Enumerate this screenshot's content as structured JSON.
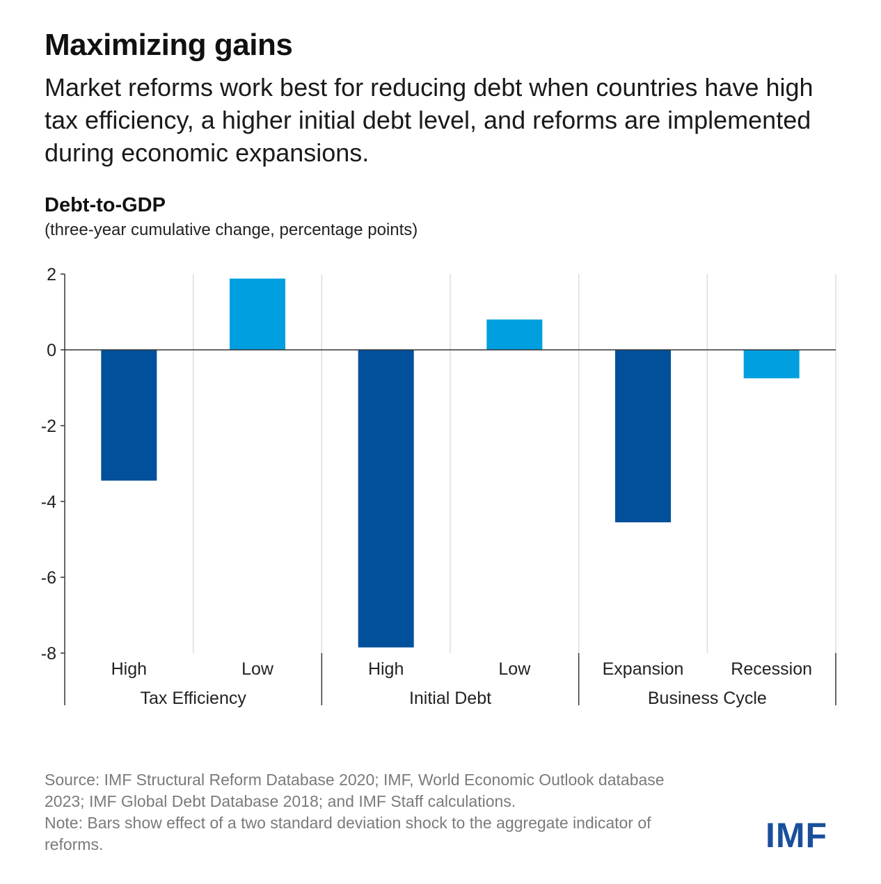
{
  "title": "Maximizing gains",
  "subtitle": "Market reforms work best for reducing debt when countries have high tax efficiency, a higher initial debt level, and reforms are implemented during economic expansions.",
  "y_axis_title": "Debt-to-GDP",
  "y_axis_subtitle": "(three-year cumulative change, percentage points)",
  "source": "Source: IMF Structural Reform Database 2020; IMF, World Economic Outlook database 2023; IMF Global Debt Database 2018; and IMF Staff calculations.",
  "note": "Note: Bars show effect of a two standard deviation shock to the aggregate indicator of reforms.",
  "logo": "IMF",
  "colors": {
    "dark": "#00509b",
    "light": "#009fdf",
    "grid": "#dddddd",
    "axis": "#333333"
  },
  "chart_data": {
    "type": "bar",
    "groups": [
      {
        "name": "Tax Efficiency",
        "categories": [
          "High",
          "Low"
        ],
        "values": [
          -3.45,
          1.88
        ]
      },
      {
        "name": "Initial Debt",
        "categories": [
          "High",
          "Low"
        ],
        "values": [
          -7.85,
          0.8
        ]
      },
      {
        "name": "Business Cycle",
        "categories": [
          "Expansion",
          "Recession"
        ],
        "values": [
          -4.55,
          -0.75
        ]
      }
    ],
    "ylim": [
      -8,
      2
    ],
    "yticks": [
      2,
      0,
      -2,
      -4,
      -6,
      -8
    ],
    "ytick_labels": [
      "2",
      "0",
      "-2",
      "-4",
      "-6",
      "-8"
    ],
    "grid": true,
    "bar_colors": [
      "#00509b",
      "#009fdf"
    ]
  }
}
